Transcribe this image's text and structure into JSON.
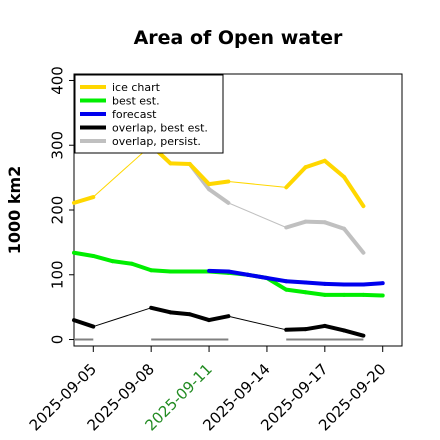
{
  "chart_data": {
    "type": "line",
    "title": "Area of Open water",
    "ylabel": "1000 km2",
    "xlabel": "",
    "ylim": [
      -10,
      410
    ],
    "yticks": [
      0,
      100,
      200,
      300,
      400
    ],
    "x_range": [
      "2025-09-04",
      "2025-09-21"
    ],
    "x_ticks": [
      {
        "date": "2025-09-05",
        "label": "2025-09-05",
        "color": "#000000"
      },
      {
        "date": "2025-09-08",
        "label": "2025-09-08",
        "color": "#000000"
      },
      {
        "date": "2025-09-11",
        "label": "2025-09-11",
        "color": "#228B22"
      },
      {
        "date": "2025-09-14",
        "label": "2025-09-14",
        "color": "#000000"
      },
      {
        "date": "2025-09-17",
        "label": "2025-09-17",
        "color": "#000000"
      },
      {
        "date": "2025-09-20",
        "label": "2025-09-20",
        "color": "#000000"
      }
    ],
    "legend": {
      "position": "top-left"
    },
    "grid": false,
    "series": [
      {
        "name": "ice chart",
        "color": "#FFD700",
        "points": [
          [
            "2025-09-04",
            211
          ],
          [
            "2025-09-05",
            220
          ],
          [
            "2025-09-08",
            300
          ],
          [
            "2025-09-09",
            272
          ],
          [
            "2025-09-10",
            271
          ],
          [
            "2025-09-11",
            240
          ],
          [
            "2025-09-12",
            244
          ],
          [
            "2025-09-15",
            235
          ],
          [
            "2025-09-16",
            266
          ],
          [
            "2025-09-17",
            276
          ],
          [
            "2025-09-18",
            251
          ],
          [
            "2025-09-19",
            206
          ]
        ]
      },
      {
        "name": "best est.",
        "color": "#00EE00",
        "points": [
          [
            "2025-09-04",
            134
          ],
          [
            "2025-09-05",
            129
          ],
          [
            "2025-09-06",
            121
          ],
          [
            "2025-09-07",
            117
          ],
          [
            "2025-09-08",
            107
          ],
          [
            "2025-09-09",
            105
          ],
          [
            "2025-09-10",
            105
          ],
          [
            "2025-09-11",
            105
          ],
          [
            "2025-09-12",
            103
          ],
          [
            "2025-09-13",
            100
          ],
          [
            "2025-09-14",
            95
          ],
          [
            "2025-09-15",
            77
          ],
          [
            "2025-09-16",
            73
          ],
          [
            "2025-09-17",
            69
          ],
          [
            "2025-09-18",
            69
          ],
          [
            "2025-09-19",
            69
          ],
          [
            "2025-09-20",
            68
          ]
        ]
      },
      {
        "name": "forecast",
        "color": "#0000EE",
        "points": [
          [
            "2025-09-11",
            106
          ],
          [
            "2025-09-12",
            105
          ],
          [
            "2025-09-13",
            100
          ],
          [
            "2025-09-14",
            95
          ],
          [
            "2025-09-15",
            90
          ],
          [
            "2025-09-16",
            88
          ],
          [
            "2025-09-17",
            86
          ],
          [
            "2025-09-18",
            85
          ],
          [
            "2025-09-19",
            85
          ],
          [
            "2025-09-20",
            87
          ]
        ]
      },
      {
        "name": "overlap, best est.",
        "color": "#000000",
        "points": [
          [
            "2025-09-04",
            30
          ],
          [
            "2025-09-05",
            20
          ],
          [
            "2025-09-08",
            49
          ],
          [
            "2025-09-09",
            42
          ],
          [
            "2025-09-10",
            39
          ],
          [
            "2025-09-11",
            30
          ],
          [
            "2025-09-12",
            36
          ],
          [
            "2025-09-15",
            15
          ],
          [
            "2025-09-16",
            16
          ],
          [
            "2025-09-17",
            21
          ],
          [
            "2025-09-18",
            14
          ],
          [
            "2025-09-19",
            6
          ]
        ]
      },
      {
        "name": "overlap, persist.",
        "color": "#C0C0C0",
        "points": [
          [
            "2025-09-10",
            271
          ],
          [
            "2025-09-11",
            232
          ],
          [
            "2025-09-12",
            211
          ],
          [
            "2025-09-15",
            173
          ],
          [
            "2025-09-16",
            182
          ],
          [
            "2025-09-17",
            181
          ],
          [
            "2025-09-18",
            171
          ],
          [
            "2025-09-19",
            134
          ]
        ]
      }
    ],
    "persist_zero_segments": [
      [
        "2025-09-04",
        "2025-09-05"
      ],
      [
        "2025-09-08",
        "2025-09-12"
      ],
      [
        "2025-09-15",
        "2025-09-19"
      ]
    ]
  }
}
